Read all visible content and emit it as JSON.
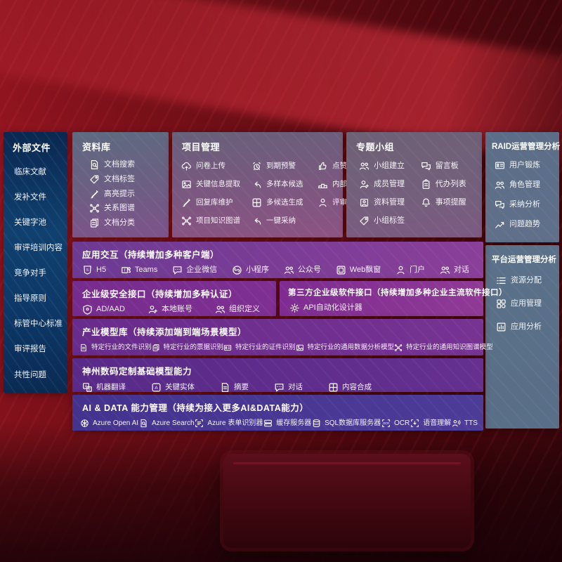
{
  "colors": {
    "background_red": "#7d1019",
    "sidebar_blue": "#0d3766",
    "band_purple": "#7a3a96",
    "band_indigo": "#46358f",
    "panel_slate": "#5d6f88"
  },
  "sidebar": {
    "title": "外部文件",
    "items": [
      {
        "label": "临床文献"
      },
      {
        "label": "发补文件"
      },
      {
        "label": "关键字池"
      },
      {
        "label": "审评培训内容"
      },
      {
        "label": "竞争对手"
      },
      {
        "label": "指导原则"
      },
      {
        "label": "标管中心标准"
      },
      {
        "label": "审评报告"
      },
      {
        "label": "共性问题"
      }
    ]
  },
  "top_panels": [
    {
      "title": "资料库",
      "items": [
        {
          "icon": "doc-search",
          "label": "文档搜索"
        },
        {
          "icon": "doc-tag",
          "label": "文档标签"
        },
        {
          "icon": "highlight-pen",
          "label": "高亮提示"
        },
        {
          "icon": "relation-graph",
          "label": "关系图谱"
        },
        {
          "icon": "doc-category",
          "label": "文档分类"
        }
      ]
    },
    {
      "title": "项目管理",
      "items": [
        {
          "icon": "cloud-upload",
          "label": "问卷上传"
        },
        {
          "icon": "key-info",
          "label": "关键信息提取"
        },
        {
          "icon": "reply-maintain",
          "label": "回复库维护"
        },
        {
          "icon": "project-graph",
          "label": "项目知识图谱"
        },
        {
          "icon": "due-alarm",
          "label": "到期预警"
        },
        {
          "icon": "multi-sample",
          "label": "多样本候选"
        },
        {
          "icon": "multi-generate",
          "label": "多候选生成"
        },
        {
          "icon": "one-click-adopt",
          "label": "一键采纳"
        },
        {
          "icon": "thumbs-up",
          "label": "点赞感谢"
        },
        {
          "icon": "expert-ranking",
          "label": "内部专家排名"
        },
        {
          "icon": "reviewer-portrait",
          "label": "评审员画像"
        }
      ]
    },
    {
      "title": "专题小组",
      "items": [
        {
          "icon": "group-create",
          "label": "小组建立"
        },
        {
          "icon": "member-manage",
          "label": "成员管理"
        },
        {
          "icon": "data-manage",
          "label": "资料管理"
        },
        {
          "icon": "group-tag",
          "label": "小组标签"
        },
        {
          "icon": "message-board",
          "label": "留言板"
        },
        {
          "icon": "todo-list",
          "label": "代办列表"
        },
        {
          "icon": "remind-bell",
          "label": "事项提醒"
        }
      ]
    }
  ],
  "right_panels": [
    {
      "title": "RAID运营管理分析",
      "items": [
        {
          "icon": "user-card",
          "label": "用户锻炼"
        },
        {
          "icon": "role-manage",
          "label": "角色管理"
        },
        {
          "icon": "adopt-analysis",
          "label": "采纳分析"
        },
        {
          "icon": "issue-trend",
          "label": "问题趋势"
        }
      ]
    },
    {
      "title": "平台运营管理分析",
      "items": [
        {
          "icon": "resource-alloc",
          "label": "资源分配"
        },
        {
          "icon": "app-manage",
          "label": "应用管理"
        },
        {
          "icon": "app-analysis",
          "label": "应用分析"
        }
      ]
    }
  ],
  "bands": [
    {
      "title": "应用交互（持续增加多种客户端）",
      "items": [
        {
          "icon": "h5",
          "label": "H5"
        },
        {
          "icon": "teams",
          "label": "Teams"
        },
        {
          "icon": "wechat-work",
          "label": "企业微信"
        },
        {
          "icon": "mini-program",
          "label": "小程序"
        },
        {
          "icon": "official-account",
          "label": "公众号"
        },
        {
          "icon": "web-window",
          "label": "Web飘窗"
        },
        {
          "icon": "portal",
          "label": "门户"
        },
        {
          "icon": "dialog",
          "label": "对话"
        }
      ]
    },
    {
      "title": "企业级安全接口（持续增加多种认证）",
      "items": [
        {
          "icon": "ad-aad",
          "label": "AD/AAD"
        },
        {
          "icon": "local-account",
          "label": "本地账号"
        },
        {
          "icon": "org-define",
          "label": "组织定义"
        }
      ]
    },
    {
      "title": "第三方企业级软件接口（持续增加多种企业主流软件接口）",
      "items": [
        {
          "icon": "api-gear",
          "label": "API自动化设计器"
        }
      ]
    },
    {
      "title": "产业模型库（持续添加端到端场景模型）",
      "items": [
        {
          "icon": "file-recog",
          "label": "特定行业的文件识别"
        },
        {
          "icon": "invoice-recog",
          "label": "特定行业的票据识别"
        },
        {
          "icon": "idcard-recog",
          "label": "特定行业的证件识别"
        },
        {
          "icon": "data-model",
          "label": "特定行业的通用数据分析模型"
        },
        {
          "icon": "knowledge-model",
          "label": "特定行业的通用知识图谱模型"
        }
      ]
    },
    {
      "title": "神州数码定制基础模型能力",
      "items": [
        {
          "icon": "translate",
          "label": "机器翻译"
        },
        {
          "icon": "key-entity",
          "label": "关键实体"
        },
        {
          "icon": "summary",
          "label": "摘要"
        },
        {
          "icon": "chat-dialog",
          "label": "对话"
        },
        {
          "icon": "content-compose",
          "label": "内容合成"
        }
      ]
    },
    {
      "title": "AI & DATA 能力管理（持续为接入更多AI&DATA能力）",
      "items": [
        {
          "icon": "openai",
          "label": "Azure Open AI"
        },
        {
          "icon": "azure-search",
          "label": "Azure Search"
        },
        {
          "icon": "form-recognizer",
          "label": "Azure 表单识别器"
        },
        {
          "icon": "cache-server",
          "label": "缓存服务器"
        },
        {
          "icon": "sql-server",
          "label": "SQL数据库服务器"
        },
        {
          "icon": "ocr",
          "label": "OCR"
        },
        {
          "icon": "speech",
          "label": "语音理解"
        },
        {
          "icon": "tts",
          "label": "TTS"
        }
      ]
    }
  ]
}
